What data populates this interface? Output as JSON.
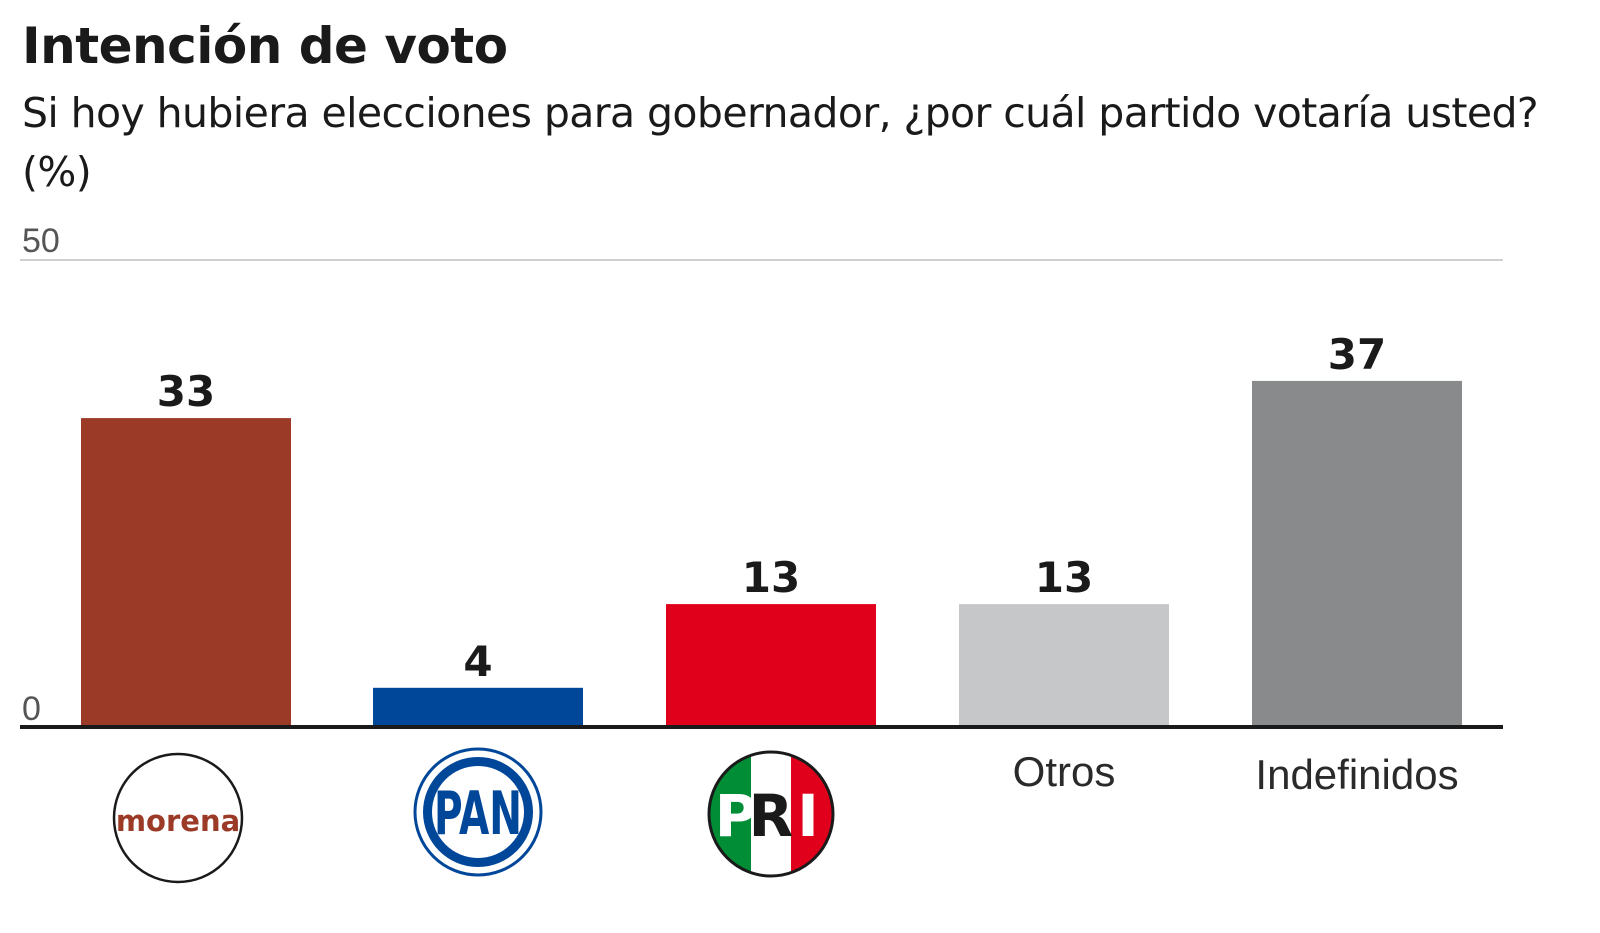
{
  "chart_data": {
    "type": "bar",
    "title": "Intención de voto",
    "subtitle": "Si hoy hubiera elecciones para gobernador, ¿por cuál partido votaría usted? (%)",
    "xlabel": "",
    "ylabel": "",
    "ylim": [
      0,
      50
    ],
    "y_ticks": [
      "0",
      "50"
    ],
    "grid": false,
    "categories": [
      "morena",
      "PAN",
      "PRI",
      "Otros",
      "Indefinidos"
    ],
    "values": [
      33,
      4,
      13,
      13,
      37
    ],
    "colors": [
      "#9b3a26",
      "#00479a",
      "#e1001b",
      "#c6c7c9",
      "#898a8c"
    ],
    "category_display": [
      "logo",
      "logo",
      "logo",
      "text",
      "text"
    ],
    "logos": {
      "morena": {
        "text": "morena",
        "icon": "morena-logo-icon",
        "color": "#9b3a26"
      },
      "PAN": {
        "text": "PAN",
        "icon": "pan-logo-icon",
        "color": "#00479a"
      },
      "PRI": {
        "letters": [
          "P",
          "R",
          "I"
        ],
        "icon": "pri-logo-icon",
        "colors": [
          "#008d36",
          "#ffffff",
          "#e1001b"
        ]
      }
    }
  }
}
